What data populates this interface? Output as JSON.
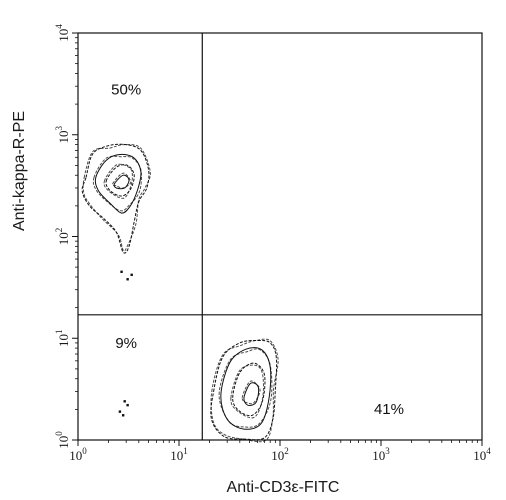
{
  "chart_data": {
    "type": "scatter",
    "subtype": "flow-cytometry-contour",
    "title": "",
    "xlabel": "Anti-CD3ε-FITC",
    "ylabel": "Anti-kappa-R-PE",
    "xscale": "log",
    "yscale": "log",
    "xlim": [
      1,
      10000
    ],
    "ylim": [
      1,
      10000
    ],
    "x_ticks": [
      {
        "value": 1,
        "label": "10",
        "exp": "0"
      },
      {
        "value": 10,
        "label": "10",
        "exp": "1"
      },
      {
        "value": 100,
        "label": "10",
        "exp": "2"
      },
      {
        "value": 1000,
        "label": "10",
        "exp": "3"
      },
      {
        "value": 10000,
        "label": "10",
        "exp": "4"
      }
    ],
    "y_ticks": [
      {
        "value": 1,
        "label": "10",
        "exp": "0"
      },
      {
        "value": 10,
        "label": "10",
        "exp": "1"
      },
      {
        "value": 100,
        "label": "10",
        "exp": "2"
      },
      {
        "value": 1000,
        "label": "10",
        "exp": "3"
      },
      {
        "value": 10000,
        "label": "10",
        "exp": "4"
      }
    ],
    "gates": {
      "x": 17,
      "y": 17
    },
    "quadrants": [
      {
        "id": "upper-left",
        "label": "50%",
        "x": 3,
        "y": 2500
      },
      {
        "id": "upper-right",
        "label": "",
        "x": 500,
        "y": 2500
      },
      {
        "id": "lower-left",
        "label": "9%",
        "x": 3,
        "y": 8
      },
      {
        "id": "lower-right",
        "label": "41%",
        "x": 1200,
        "y": 1.8
      }
    ],
    "populations": [
      {
        "id": "kappa-positive",
        "center": [
          2.5,
          300
        ],
        "contours": [
          [
            [
              1.2,
              380
            ],
            [
              1.4,
              650
            ],
            [
              2.0,
              780
            ],
            [
              3.0,
              800
            ],
            [
              4.2,
              700
            ],
            [
              5.0,
              450
            ],
            [
              4.8,
              300
            ],
            [
              4.0,
              220
            ],
            [
              3.6,
              140
            ],
            [
              3.2,
              80
            ],
            [
              2.8,
              70
            ],
            [
              2.4,
              110
            ],
            [
              1.8,
              150
            ],
            [
              1.3,
              200
            ],
            [
              1.1,
              280
            ]
          ],
          [
            [
              1.5,
              380
            ],
            [
              1.9,
              560
            ],
            [
              2.6,
              640
            ],
            [
              3.6,
              590
            ],
            [
              4.2,
              430
            ],
            [
              3.9,
              290
            ],
            [
              3.3,
              200
            ],
            [
              2.7,
              170
            ],
            [
              2.1,
              210
            ],
            [
              1.6,
              280
            ]
          ],
          [
            [
              1.9,
              350
            ],
            [
              2.4,
              480
            ],
            [
              3.1,
              500
            ],
            [
              3.6,
              400
            ],
            [
              3.3,
              290
            ],
            [
              2.7,
              250
            ],
            [
              2.1,
              280
            ]
          ],
          [
            [
              2.3,
              330
            ],
            [
              2.8,
              400
            ],
            [
              3.2,
              360
            ],
            [
              2.9,
              300
            ],
            [
              2.4,
              300
            ]
          ]
        ],
        "specks": [
          [
            3.1,
            38
          ],
          [
            2.7,
            45
          ],
          [
            3.4,
            42
          ]
        ]
      },
      {
        "id": "cd3-positive",
        "center": [
          55,
          2.5
        ],
        "contours": [
          [
            [
              22,
              3.0
            ],
            [
              27,
              6.5
            ],
            [
              40,
              9.0
            ],
            [
              60,
              9.5
            ],
            [
              80,
              9.0
            ],
            [
              92,
              6.5
            ],
            [
              90,
              3.2
            ],
            [
              85,
              1.6
            ],
            [
              70,
              1.05
            ],
            [
              45,
              1.02
            ],
            [
              28,
              1.08
            ],
            [
              21,
              1.6
            ]
          ],
          [
            [
              26,
              2.8
            ],
            [
              32,
              5.8
            ],
            [
              46,
              7.8
            ],
            [
              66,
              7.7
            ],
            [
              80,
              5.2
            ],
            [
              78,
              2.6
            ],
            [
              65,
              1.45
            ],
            [
              44,
              1.28
            ],
            [
              30,
              1.6
            ]
          ],
          [
            [
              34,
              2.6
            ],
            [
              40,
              4.6
            ],
            [
              55,
              5.7
            ],
            [
              70,
              4.4
            ],
            [
              67,
              2.4
            ],
            [
              53,
              1.75
            ],
            [
              39,
              1.95
            ]
          ],
          [
            [
              44,
              2.6
            ],
            [
              51,
              3.6
            ],
            [
              61,
              3.3
            ],
            [
              58,
              2.35
            ],
            [
              48,
              2.2
            ]
          ]
        ],
        "specks": [
          [
            2.6,
            1.9
          ],
          [
            2.8,
            1.75
          ],
          [
            3.1,
            2.2
          ],
          [
            2.9,
            2.4
          ]
        ]
      }
    ],
    "grid": false,
    "legend": "none"
  }
}
